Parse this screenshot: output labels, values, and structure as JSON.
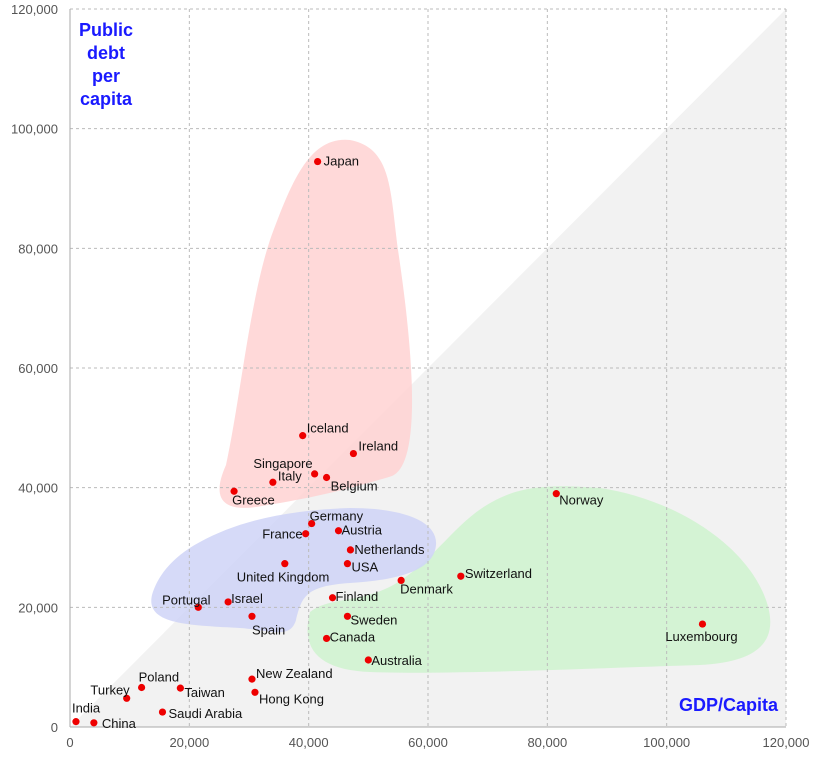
{
  "chart_data": {
    "type": "scatter",
    "ylabel_lines": [
      "Public",
      "debt",
      "per",
      "capita"
    ],
    "xlabel": "GDP/Capita",
    "xlim": [
      0,
      120000
    ],
    "ylim": [
      0,
      120000
    ],
    "x_ticks": [
      "0",
      "20,000",
      "40,000",
      "60,000",
      "80,000",
      "100,000",
      "120,000"
    ],
    "y_ticks": [
      "0",
      "20,000",
      "40,000",
      "60,000",
      "80,000",
      "100,000",
      "120,000"
    ],
    "grid": true,
    "colors": {
      "point": "#ee0000",
      "tick_text": "#555555",
      "axis_title": "#1a1aff",
      "high_debt_region": "#ffd0d0",
      "mid_region": "#cfd3f7",
      "low_debt_region": "#cff3cf",
      "diagonal_region": "#f2f2f2"
    },
    "points": [
      {
        "name": "Japan",
        "x": 41500,
        "y": 94500
      },
      {
        "name": "Iceland",
        "x": 39000,
        "y": 48700
      },
      {
        "name": "Ireland",
        "x": 47500,
        "y": 45700
      },
      {
        "name": "Singapore",
        "x": 41000,
        "y": 42300
      },
      {
        "name": "Italy",
        "x": 34000,
        "y": 40900
      },
      {
        "name": "Belgium",
        "x": 43000,
        "y": 41700
      },
      {
        "name": "Greece",
        "x": 27500,
        "y": 39400
      },
      {
        "name": "Norway",
        "x": 81500,
        "y": 39000
      },
      {
        "name": "Germany",
        "x": 40500,
        "y": 34000
      },
      {
        "name": "France",
        "x": 39500,
        "y": 32300
      },
      {
        "name": "Austria",
        "x": 45000,
        "y": 32800
      },
      {
        "name": "Netherlands",
        "x": 47000,
        "y": 29600
      },
      {
        "name": "United Kingdom",
        "x": 36000,
        "y": 27300
      },
      {
        "name": "USA",
        "x": 46500,
        "y": 27300
      },
      {
        "name": "Switzerland",
        "x": 65500,
        "y": 25200
      },
      {
        "name": "Denmark",
        "x": 55500,
        "y": 24500
      },
      {
        "name": "Portugal",
        "x": 21500,
        "y": 20000
      },
      {
        "name": "Israel",
        "x": 26500,
        "y": 20900
      },
      {
        "name": "Finland",
        "x": 44000,
        "y": 21600
      },
      {
        "name": "Spain",
        "x": 30500,
        "y": 18500
      },
      {
        "name": "Sweden",
        "x": 46500,
        "y": 18500
      },
      {
        "name": "Luxembourg",
        "x": 106000,
        "y": 17200
      },
      {
        "name": "Canada",
        "x": 43000,
        "y": 14800
      },
      {
        "name": "Australia",
        "x": 50000,
        "y": 11200
      },
      {
        "name": "New Zealand",
        "x": 30500,
        "y": 8000
      },
      {
        "name": "Poland",
        "x": 12000,
        "y": 6600
      },
      {
        "name": "Taiwan",
        "x": 18500,
        "y": 6500
      },
      {
        "name": "Hong Kong",
        "x": 31000,
        "y": 5800
      },
      {
        "name": "Turkey",
        "x": 9500,
        "y": 4800
      },
      {
        "name": "Saudi Arabia",
        "x": 15500,
        "y": 2500
      },
      {
        "name": "India",
        "x": 1000,
        "y": 900
      },
      {
        "name": "China",
        "x": 4000,
        "y": 700
      }
    ]
  }
}
